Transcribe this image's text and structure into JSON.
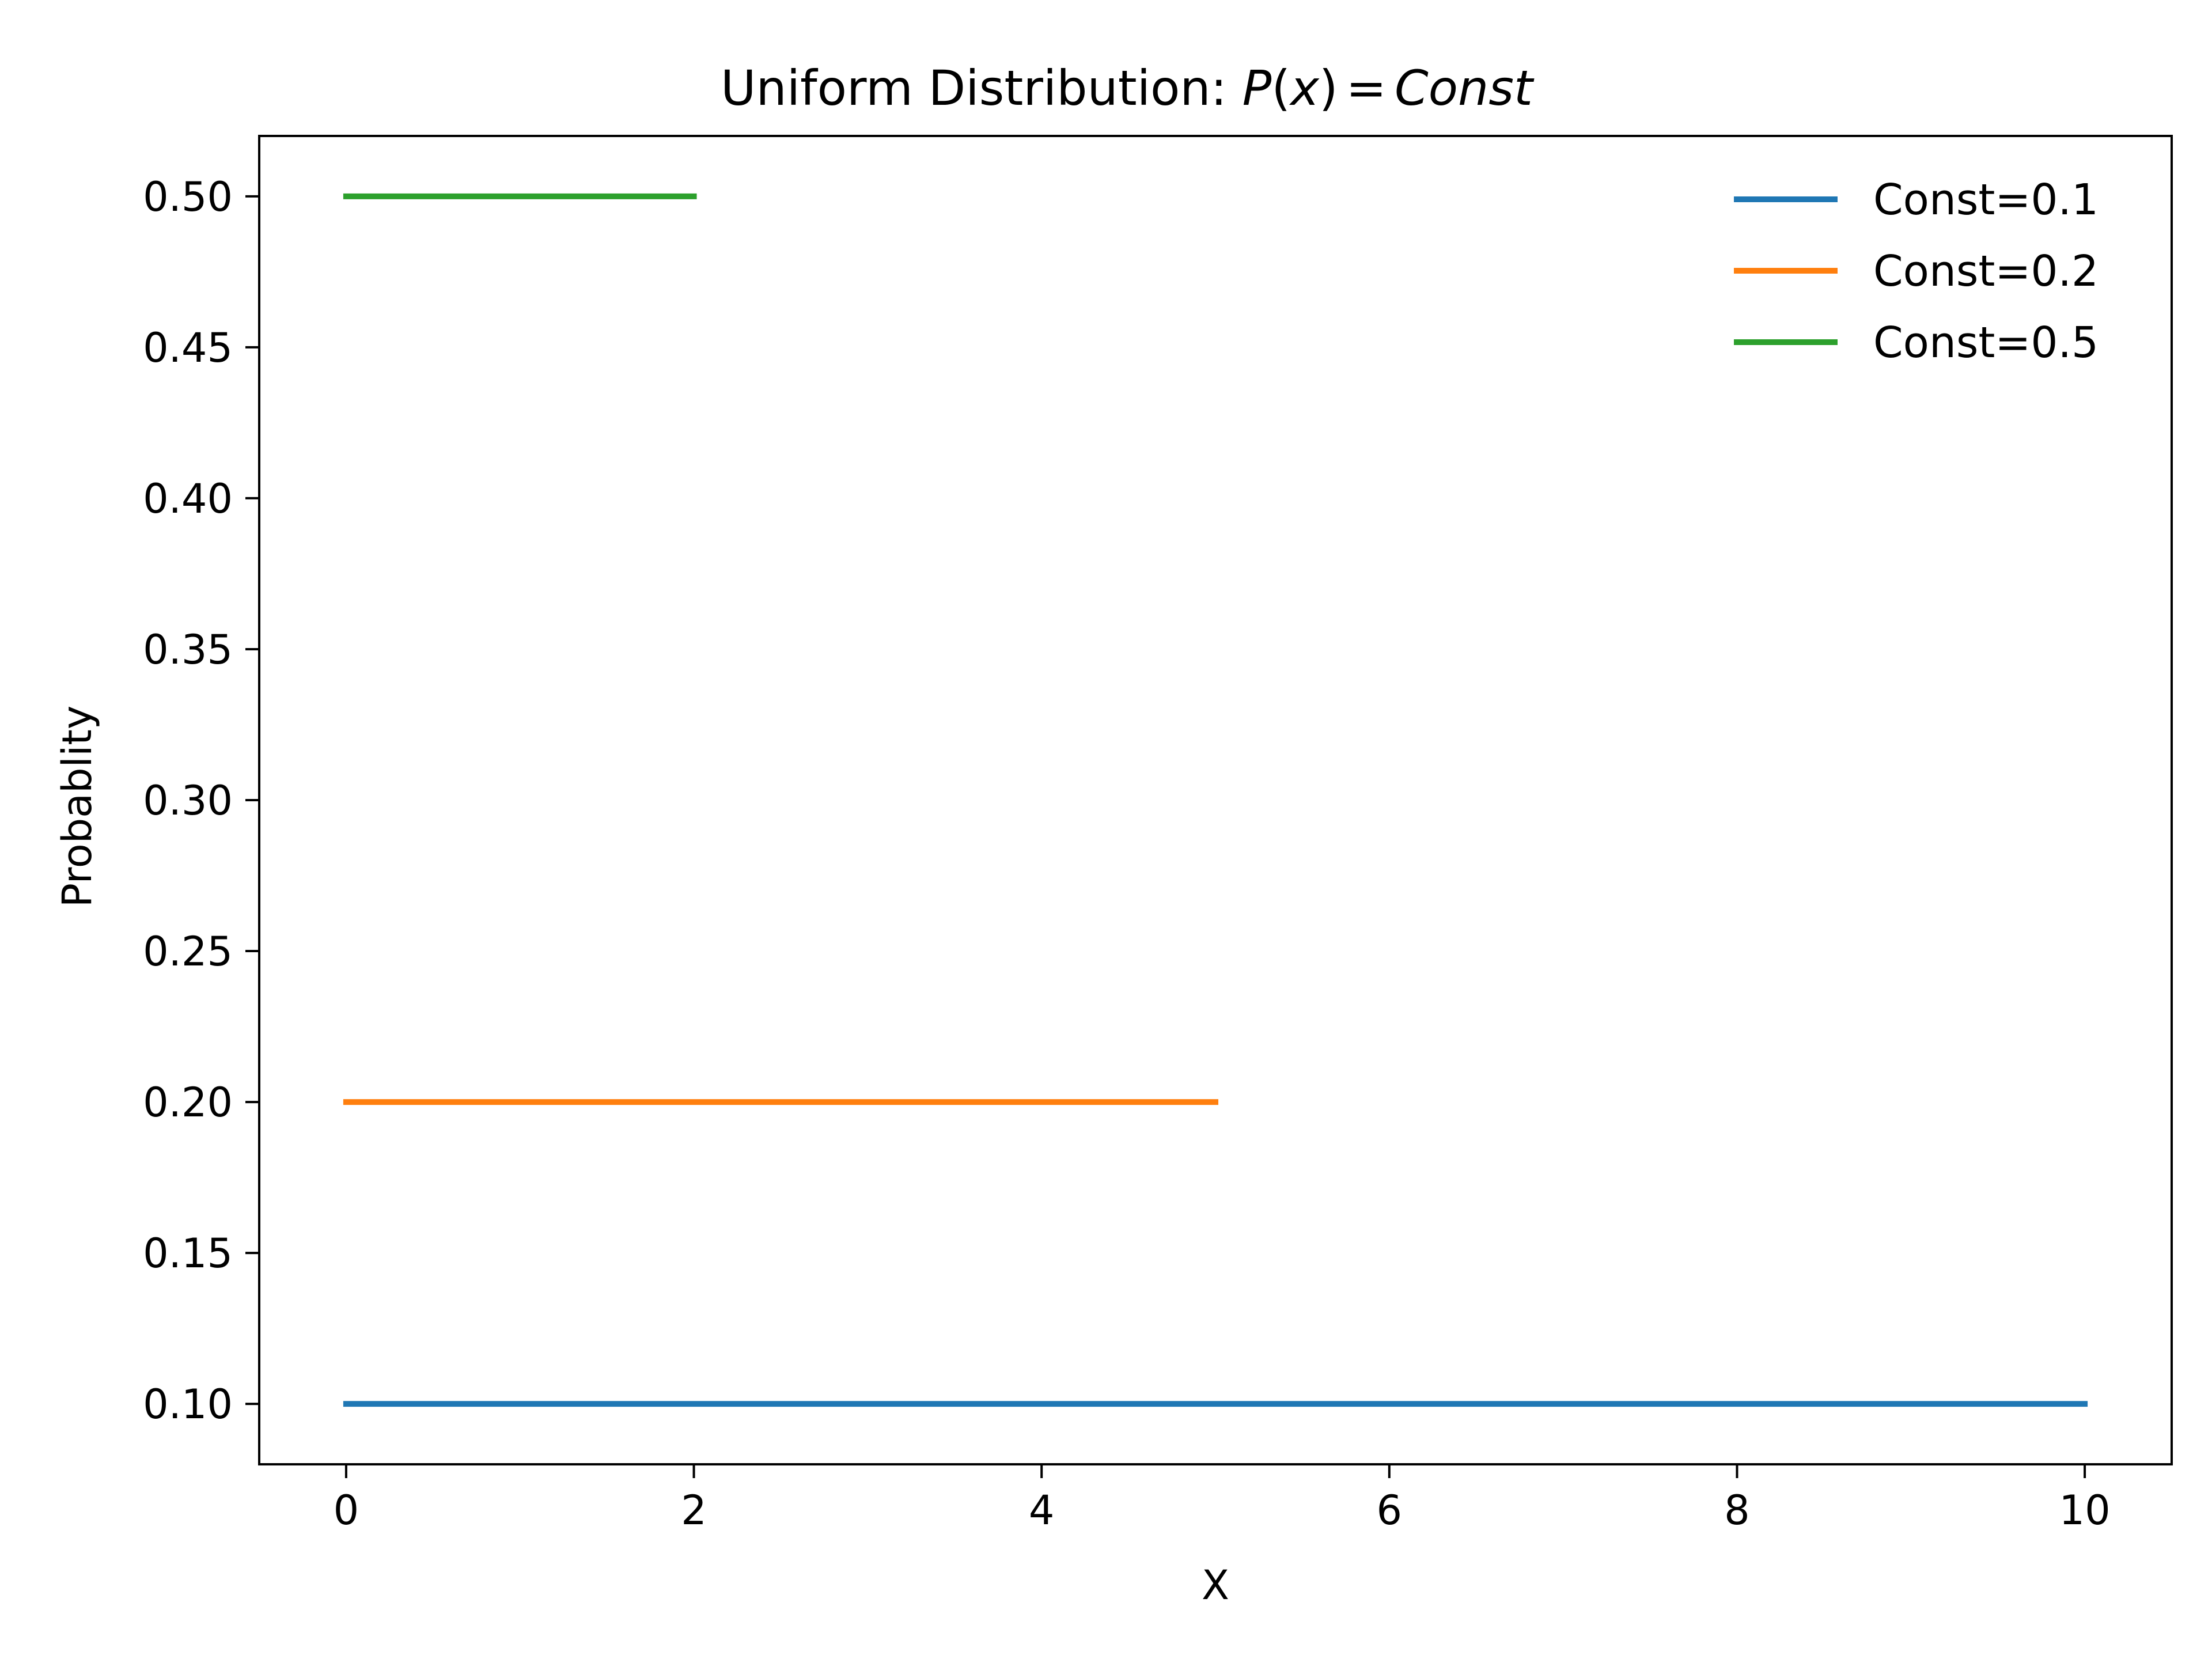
{
  "chart_data": {
    "type": "line",
    "title": "Uniform Distribution: P(x) = Const",
    "title_prefix": "Uniform Distribution: ",
    "title_math": {
      "p": "P",
      "open": "(",
      "x": "x",
      "close": ")",
      "eq": "=",
      "rhs": "Const"
    },
    "xlabel": "X",
    "ylabel": "Probablity",
    "xlim": [
      -0.5,
      10.5
    ],
    "ylim": [
      0.08,
      0.52
    ],
    "xticks": [
      0,
      2,
      4,
      6,
      8,
      10
    ],
    "yticks": [
      0.1,
      0.15,
      0.2,
      0.25,
      0.3,
      0.35,
      0.4,
      0.45,
      0.5
    ],
    "xtick_labels": [
      "0",
      "2",
      "4",
      "6",
      "8",
      "10"
    ],
    "ytick_labels": [
      "0.10",
      "0.15",
      "0.20",
      "0.25",
      "0.30",
      "0.35",
      "0.40",
      "0.45",
      "0.50"
    ],
    "grid": false,
    "legend_position": "top-right",
    "series": [
      {
        "name": "Const=0.1",
        "color": "#1f77b4",
        "x": [
          0,
          10
        ],
        "y": [
          0.1,
          0.1
        ]
      },
      {
        "name": "Const=0.2",
        "color": "#ff7f0e",
        "x": [
          0,
          5
        ],
        "y": [
          0.2,
          0.2
        ]
      },
      {
        "name": "Const=0.5",
        "color": "#2ca02c",
        "x": [
          0,
          2
        ],
        "y": [
          0.5,
          0.5
        ]
      }
    ]
  }
}
